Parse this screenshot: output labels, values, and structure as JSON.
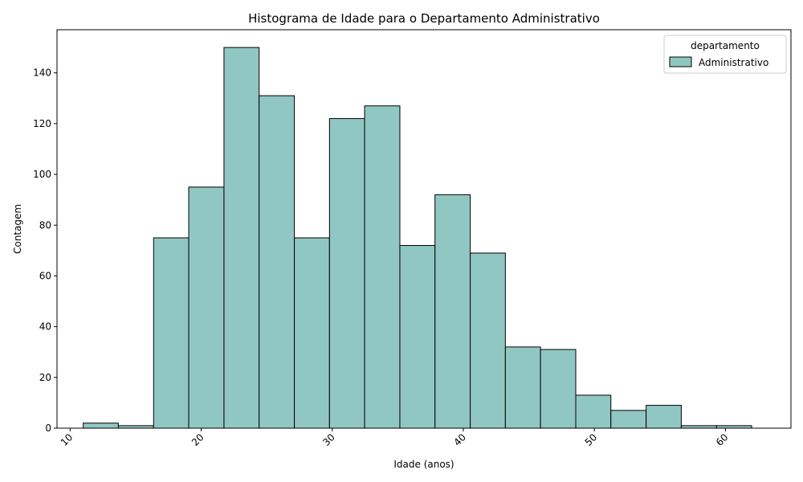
{
  "chart_data": {
    "type": "bar",
    "title": "Histograma de Idade para o Departamento Administrativo",
    "xlabel": "Idade (anos)",
    "ylabel": "Contagem",
    "xlim": [
      9,
      65
    ],
    "ylim": [
      0,
      157
    ],
    "xticks": [
      10,
      20,
      30,
      40,
      50,
      60
    ],
    "yticks": [
      0,
      20,
      40,
      60,
      80,
      100,
      120,
      140
    ],
    "bin_edges": [
      11.0,
      13.68,
      16.37,
      19.05,
      21.74,
      24.42,
      27.11,
      29.79,
      32.47,
      35.16,
      37.84,
      40.53,
      43.21,
      45.89,
      48.58,
      51.26,
      53.95,
      56.63,
      59.32,
      62.0
    ],
    "values": [
      2,
      1,
      75,
      95,
      150,
      131,
      75,
      122,
      127,
      72,
      92,
      69,
      32,
      31,
      13,
      7,
      9,
      1,
      1
    ],
    "bar_color": "#91c7c3",
    "edge_color": "#000000",
    "legend": {
      "title": "departamento",
      "entries": [
        "Administrativo"
      ],
      "placement": "top-right"
    }
  }
}
